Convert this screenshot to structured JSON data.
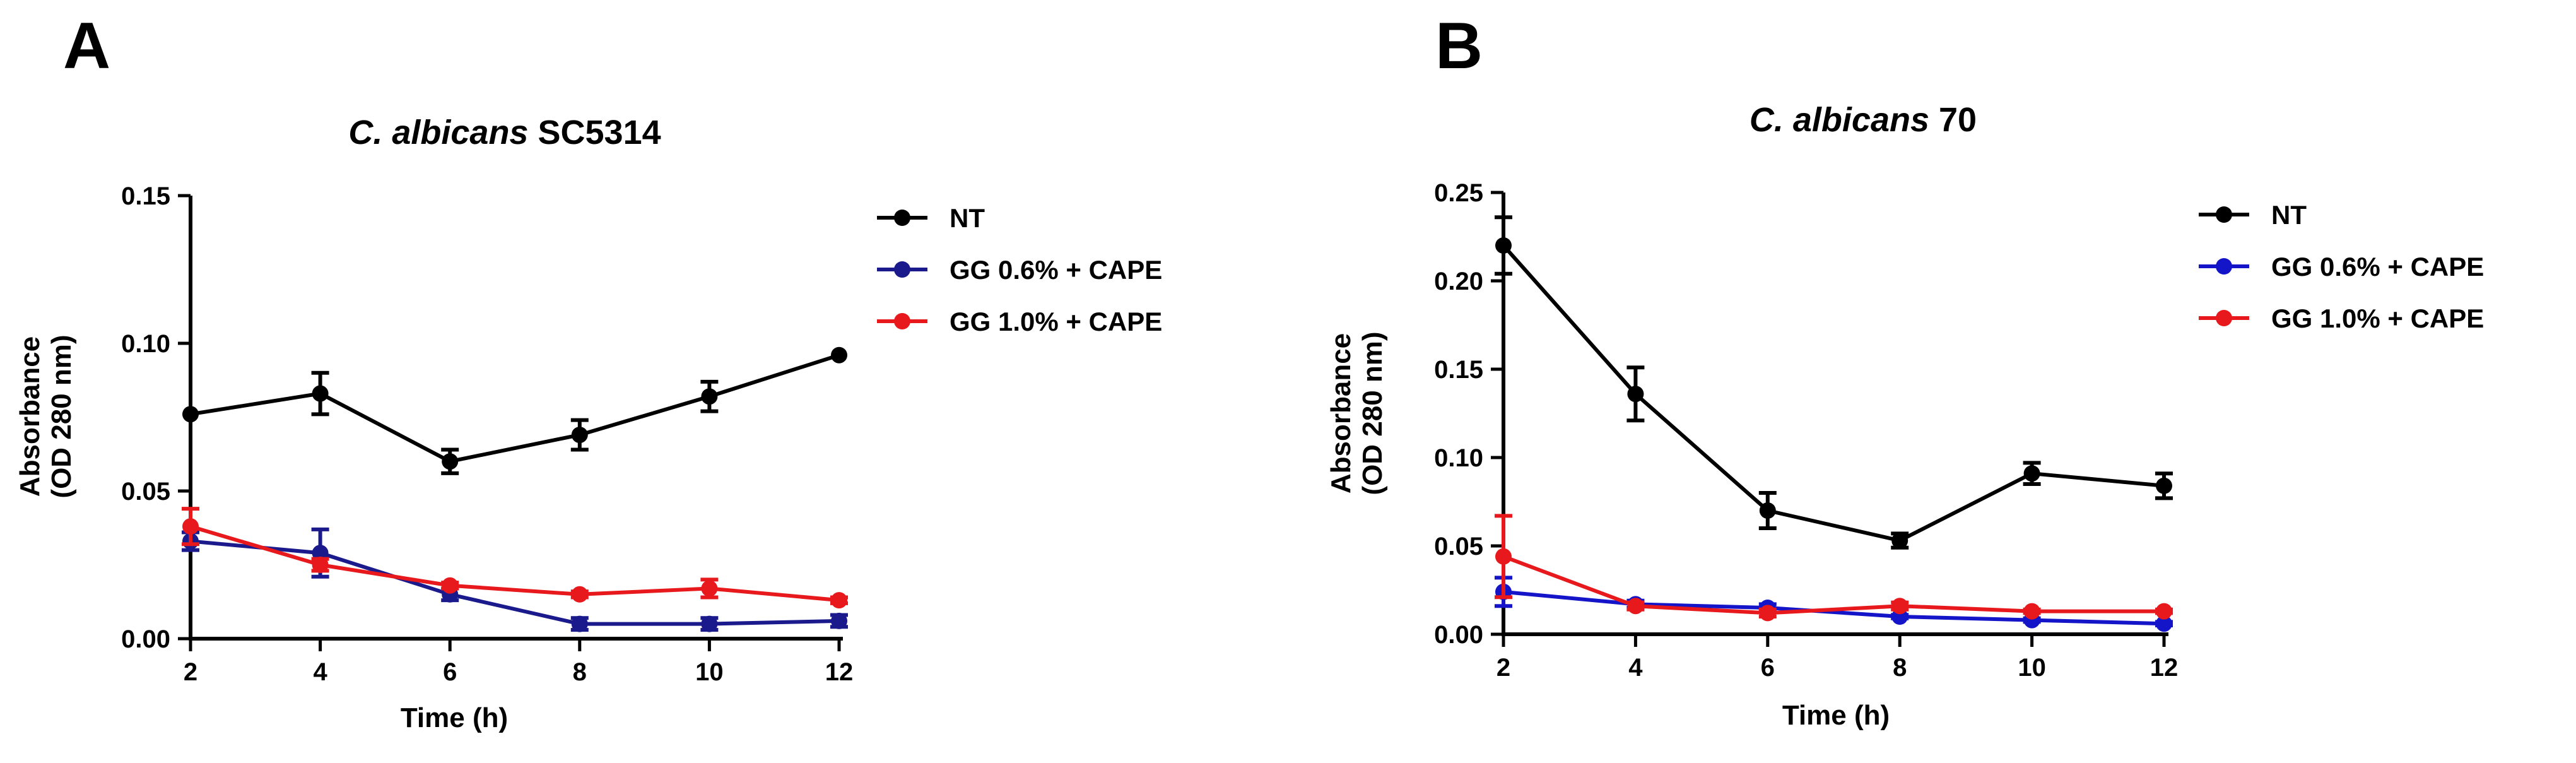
{
  "chart_data": [
    {
      "type": "line",
      "panel_letter": "A",
      "title_species": "C. albicans",
      "title_strain": "SC5314",
      "xlabel": "Time (h)",
      "ylabel_line1": "Absorbance",
      "ylabel_line2": "(OD 280 nm)",
      "x": [
        2,
        4,
        6,
        8,
        10,
        12
      ],
      "xlim": [
        2,
        12
      ],
      "ylim": [
        0,
        0.15
      ],
      "x_ticks": [
        "2",
        "4",
        "6",
        "8",
        "10",
        "12"
      ],
      "y_ticks": [
        "0.00",
        "0.05",
        "0.10",
        "0.15"
      ],
      "legend_position": "right",
      "series": [
        {
          "name": "NT",
          "color": "#000000",
          "values": [
            0.076,
            0.083,
            0.06,
            0.069,
            0.082,
            0.096
          ],
          "errors": [
            0.0,
            0.007,
            0.004,
            0.005,
            0.005,
            0.0
          ]
        },
        {
          "name": "GG 0.6% + CAPE",
          "color": "#1a1a8c",
          "values": [
            0.033,
            0.029,
            0.015,
            0.005,
            0.005,
            0.006
          ],
          "errors": [
            0.003,
            0.008,
            0.002,
            0.002,
            0.002,
            0.002
          ]
        },
        {
          "name": "GG 1.0% + CAPE",
          "color": "#e8191c",
          "values": [
            0.038,
            0.025,
            0.018,
            0.015,
            0.017,
            0.013
          ],
          "errors": [
            0.006,
            0.002,
            0.001,
            0.001,
            0.003,
            0.001
          ]
        }
      ]
    },
    {
      "type": "line",
      "panel_letter": "B",
      "title_species": "C. albicans",
      "title_strain": "70",
      "xlabel": "Time (h)",
      "ylabel_line1": "Absorbance",
      "ylabel_line2": "(OD 280 nm)",
      "x": [
        2,
        4,
        6,
        8,
        10,
        12
      ],
      "xlim": [
        2,
        12
      ],
      "ylim": [
        0,
        0.25
      ],
      "x_ticks": [
        "2",
        "4",
        "6",
        "8",
        "10",
        "12"
      ],
      "y_ticks": [
        "0.00",
        "0.05",
        "0.10",
        "0.15",
        "0.20",
        "0.25"
      ],
      "legend_position": "right",
      "series": [
        {
          "name": "NT",
          "color": "#000000",
          "values": [
            0.22,
            0.136,
            0.07,
            0.053,
            0.091,
            0.084
          ],
          "errors": [
            0.016,
            0.015,
            0.01,
            0.004,
            0.006,
            0.007
          ]
        },
        {
          "name": "GG 0.6% + CAPE",
          "color": "#1414c8",
          "values": [
            0.024,
            0.017,
            0.015,
            0.01,
            0.008,
            0.006
          ],
          "errors": [
            0.008,
            0.002,
            0.002,
            0.001,
            0.001,
            0.001
          ]
        },
        {
          "name": "GG 1.0% + CAPE",
          "color": "#e8191c",
          "values": [
            0.044,
            0.016,
            0.012,
            0.016,
            0.013,
            0.013
          ],
          "errors": [
            0.023,
            0.002,
            0.002,
            0.002,
            0.001,
            0.001
          ]
        }
      ]
    }
  ]
}
